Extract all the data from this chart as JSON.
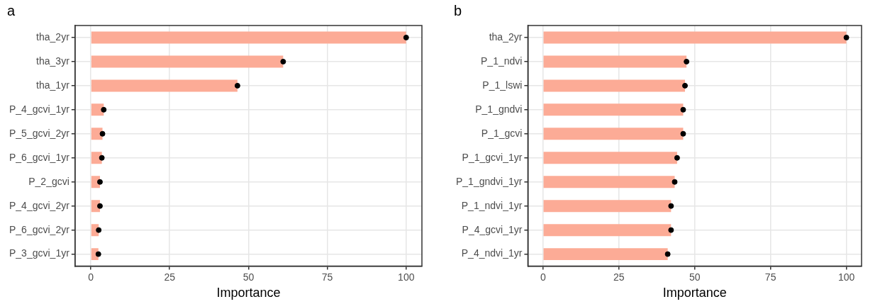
{
  "chart_data": [
    {
      "type": "bar",
      "title": "a",
      "xlabel": "Importance",
      "orientation": "horizontal",
      "categories": [
        "tha_2yr",
        "tha_3yr",
        "tha_1yr",
        "P_4_gcvi_1yr",
        "P_5_gcvi_2yr",
        "P_6_gcvi_1yr",
        "P_2_gcvi",
        "P_4_gcvi_2yr",
        "P_6_gcvi_2yr",
        "P_3_gcvi_1yr"
      ],
      "xlim": [
        -5,
        105
      ],
      "xticks": [
        0,
        25,
        50,
        75,
        100
      ],
      "grid": true,
      "legend": false,
      "series": [
        {
          "color": "#fcab96",
          "values": [
            100,
            61,
            46.5,
            4.1,
            3.7,
            3.5,
            2.9,
            2.9,
            2.5,
            2.4
          ]
        },
        {
          "type": "scatter",
          "marker": "circle",
          "color": "#000000",
          "values": [
            100,
            61,
            46.5,
            4.1,
            3.7,
            3.5,
            2.9,
            2.9,
            2.5,
            2.4
          ]
        }
      ]
    },
    {
      "type": "bar",
      "title": "b",
      "xlabel": "Importance",
      "orientation": "horizontal",
      "categories": [
        "tha_2yr",
        "P_1_ndvi",
        "P_1_lswi",
        "P_1_gndvi",
        "P_1_gcvi",
        "P_1_gcvi_1yr",
        "P_1_gndvi_1yr",
        "P_1_ndvi_1yr",
        "P_4_gcvi_1yr",
        "P_4_ndvi_1yr"
      ],
      "xlim": [
        -5,
        105
      ],
      "xticks": [
        0,
        25,
        50,
        75,
        100
      ],
      "grid": true,
      "legend": false,
      "series": [
        {
          "color": "#fcab96",
          "values": [
            100,
            47.3,
            46.8,
            46.2,
            46.2,
            44.2,
            43.4,
            42.2,
            42.2,
            41.1
          ]
        },
        {
          "type": "scatter",
          "marker": "circle",
          "color": "#000000",
          "values": [
            100,
            47.3,
            46.8,
            46.2,
            46.2,
            44.2,
            43.4,
            42.2,
            42.2,
            41.1
          ]
        }
      ]
    }
  ]
}
